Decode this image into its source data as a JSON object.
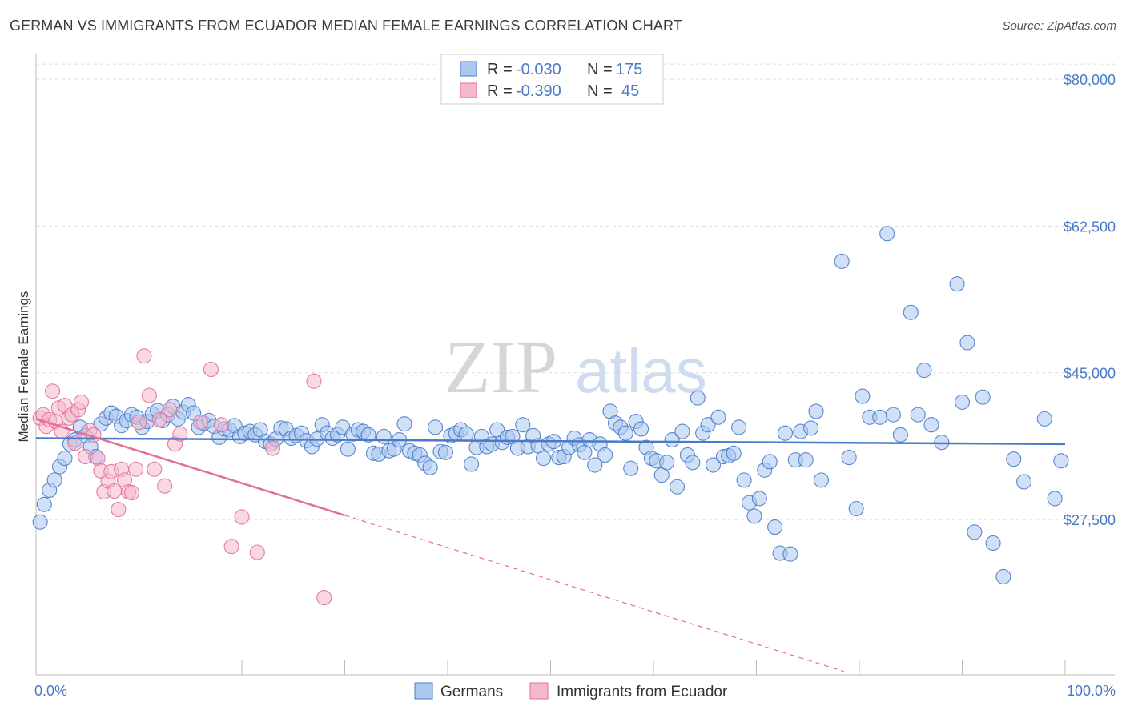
{
  "title": "GERMAN VS IMMIGRANTS FROM ECUADOR MEDIAN FEMALE EARNINGS CORRELATION CHART",
  "source": "Source: ZipAtlas.com",
  "watermark": {
    "zip": "ZIP",
    "atlas": "atlas"
  },
  "colors": {
    "blue": "#4a7ac7",
    "blue_fill": "#aac8f0",
    "pink": "#e07098",
    "pink_fill": "#f5b8cc",
    "grid": "#dddddd"
  },
  "legend": {
    "rows": [
      {
        "r_label": "R = ",
        "r_value": "-0.030",
        "n_label": "N = ",
        "n_value": "175"
      },
      {
        "r_label": "R = ",
        "r_value": "-0.390",
        "n_label": "N = ",
        "n_value": "45"
      }
    ]
  },
  "chart_data": {
    "type": "scatter",
    "title": "GERMAN VS IMMIGRANTS FROM ECUADOR MEDIAN FEMALE EARNINGS CORRELATION CHART",
    "xlabel": "",
    "ylabel": "Median Female Earnings",
    "x_range": [
      0,
      100
    ],
    "y_range": [
      9000,
      82000
    ],
    "x_tick_labels": [
      "0.0%",
      "100.0%"
    ],
    "y_ticks": [
      {
        "value": 80000,
        "label": "$80,000"
      },
      {
        "value": 62500,
        "label": "$62,500"
      },
      {
        "value": 45000,
        "label": "$45,000"
      },
      {
        "value": 27500,
        "label": "$27,500"
      }
    ],
    "grid": "horizontal dashed",
    "legend_placement": "top-center, bottom",
    "series": [
      {
        "name": "Germans",
        "color": "#4a7ac7",
        "trend": {
          "x": [
            0,
            100
          ],
          "y": [
            37200,
            36500
          ],
          "dashed_x": []
        },
        "points": [
          [
            0.4,
            27200
          ],
          [
            0.8,
            29300
          ],
          [
            1.3,
            31000
          ],
          [
            1.8,
            32200
          ],
          [
            2.3,
            33800
          ],
          [
            2.8,
            34800
          ],
          [
            3.3,
            36500
          ],
          [
            3.8,
            37000
          ],
          [
            4.3,
            38500
          ],
          [
            4.8,
            37500
          ],
          [
            5.3,
            36200
          ],
          [
            5.8,
            35000
          ],
          [
            6.3,
            38900
          ],
          [
            6.8,
            39600
          ],
          [
            7.3,
            40200
          ],
          [
            7.8,
            39800
          ],
          [
            8.3,
            38700
          ],
          [
            8.8,
            39300
          ],
          [
            9.3,
            40000
          ],
          [
            9.8,
            39700
          ],
          [
            10.3,
            38500
          ],
          [
            10.8,
            39200
          ],
          [
            11.3,
            40100
          ],
          [
            11.8,
            40500
          ],
          [
            12.3,
            39300
          ],
          [
            12.8,
            40000
          ],
          [
            13.3,
            41000
          ],
          [
            13.8,
            39500
          ],
          [
            14.3,
            40300
          ],
          [
            14.8,
            41200
          ],
          [
            15.3,
            40200
          ],
          [
            15.8,
            38500
          ],
          [
            16.3,
            39000
          ],
          [
            16.8,
            39300
          ],
          [
            17.3,
            38600
          ],
          [
            17.8,
            37300
          ],
          [
            18.3,
            38300
          ],
          [
            18.8,
            38200
          ],
          [
            19.3,
            38700
          ],
          [
            19.8,
            37400
          ],
          [
            20.3,
            37800
          ],
          [
            20.8,
            38000
          ],
          [
            21.3,
            37600
          ],
          [
            21.8,
            38200
          ],
          [
            22.3,
            36800
          ],
          [
            22.8,
            36500
          ],
          [
            23.3,
            37100
          ],
          [
            23.8,
            38400
          ],
          [
            24.3,
            38300
          ],
          [
            24.8,
            37200
          ],
          [
            25.3,
            37500
          ],
          [
            25.8,
            37800
          ],
          [
            26.3,
            36900
          ],
          [
            26.8,
            36200
          ],
          [
            27.3,
            37100
          ],
          [
            27.8,
            38800
          ],
          [
            28.3,
            37800
          ],
          [
            28.8,
            37200
          ],
          [
            29.3,
            37600
          ],
          [
            29.8,
            38500
          ],
          [
            30.3,
            35900
          ],
          [
            30.8,
            37700
          ],
          [
            31.3,
            38200
          ],
          [
            31.8,
            38000
          ],
          [
            32.3,
            37600
          ],
          [
            32.8,
            35400
          ],
          [
            33.3,
            35300
          ],
          [
            33.8,
            37400
          ],
          [
            34.3,
            35700
          ],
          [
            34.8,
            35900
          ],
          [
            35.3,
            37000
          ],
          [
            35.8,
            38900
          ],
          [
            36.3,
            35700
          ],
          [
            36.8,
            35400
          ],
          [
            37.3,
            35200
          ],
          [
            37.8,
            34200
          ],
          [
            38.3,
            33700
          ],
          [
            38.8,
            38500
          ],
          [
            39.3,
            35600
          ],
          [
            39.8,
            35500
          ],
          [
            40.3,
            37500
          ],
          [
            40.8,
            37800
          ],
          [
            41.3,
            38200
          ],
          [
            41.8,
            37700
          ],
          [
            42.3,
            34100
          ],
          [
            42.8,
            36100
          ],
          [
            43.3,
            37400
          ],
          [
            43.8,
            36200
          ],
          [
            44.3,
            36500
          ],
          [
            44.8,
            38200
          ],
          [
            45.3,
            36700
          ],
          [
            45.8,
            37300
          ],
          [
            46.3,
            37400
          ],
          [
            46.8,
            36000
          ],
          [
            47.3,
            38800
          ],
          [
            47.8,
            36200
          ],
          [
            48.3,
            37500
          ],
          [
            48.8,
            36300
          ],
          [
            49.3,
            34800
          ],
          [
            49.8,
            36500
          ],
          [
            50.3,
            36800
          ],
          [
            50.8,
            34900
          ],
          [
            51.3,
            35000
          ],
          [
            51.8,
            36100
          ],
          [
            52.3,
            37200
          ],
          [
            52.8,
            36400
          ],
          [
            53.3,
            35500
          ],
          [
            53.8,
            37000
          ],
          [
            54.3,
            34000
          ],
          [
            54.8,
            36500
          ],
          [
            55.3,
            35200
          ],
          [
            55.8,
            40400
          ],
          [
            56.3,
            39000
          ],
          [
            56.8,
            38500
          ],
          [
            57.3,
            37800
          ],
          [
            57.8,
            33600
          ],
          [
            58.3,
            39200
          ],
          [
            58.8,
            38300
          ],
          [
            59.3,
            36100
          ],
          [
            59.8,
            34800
          ],
          [
            60.3,
            34500
          ],
          [
            60.8,
            32800
          ],
          [
            61.3,
            34300
          ],
          [
            61.8,
            37000
          ],
          [
            62.3,
            31400
          ],
          [
            62.8,
            38000
          ],
          [
            63.3,
            35200
          ],
          [
            63.8,
            34300
          ],
          [
            64.3,
            42000
          ],
          [
            64.8,
            37800
          ],
          [
            65.3,
            38800
          ],
          [
            65.8,
            34000
          ],
          [
            66.3,
            39700
          ],
          [
            66.8,
            35000
          ],
          [
            67.3,
            35100
          ],
          [
            67.8,
            35400
          ],
          [
            68.3,
            38500
          ],
          [
            68.8,
            32200
          ],
          [
            69.3,
            29500
          ],
          [
            69.8,
            27900
          ],
          [
            70.3,
            30000
          ],
          [
            70.8,
            33400
          ],
          [
            71.3,
            34400
          ],
          [
            71.8,
            26600
          ],
          [
            72.3,
            23500
          ],
          [
            72.8,
            37800
          ],
          [
            73.3,
            23400
          ],
          [
            73.8,
            34600
          ],
          [
            74.3,
            38000
          ],
          [
            74.8,
            34600
          ],
          [
            75.3,
            38400
          ],
          [
            75.8,
            40400
          ],
          [
            76.3,
            32200
          ],
          [
            78.3,
            58300
          ],
          [
            79.0,
            34900
          ],
          [
            79.7,
            28800
          ],
          [
            80.3,
            42200
          ],
          [
            81.0,
            39700
          ],
          [
            82.0,
            39700
          ],
          [
            82.7,
            61600
          ],
          [
            83.3,
            40000
          ],
          [
            84.0,
            37600
          ],
          [
            85.0,
            52200
          ],
          [
            85.7,
            40000
          ],
          [
            86.3,
            45300
          ],
          [
            87.0,
            38800
          ],
          [
            88.0,
            36700
          ],
          [
            89.5,
            55600
          ],
          [
            90.0,
            41500
          ],
          [
            90.5,
            48600
          ],
          [
            91.2,
            26000
          ],
          [
            92.0,
            42100
          ],
          [
            93.0,
            24700
          ],
          [
            94.0,
            20700
          ],
          [
            95.0,
            34700
          ],
          [
            96.0,
            32000
          ],
          [
            98.0,
            39500
          ],
          [
            99.0,
            30000
          ],
          [
            99.6,
            34500
          ]
        ]
      },
      {
        "name": "Immigrants from Ecuador",
        "color": "#e07098",
        "trend": {
          "x": [
            0,
            30
          ],
          "y": [
            39500,
            28000
          ],
          "dashed_x": [
            30,
            78.5
          ]
        },
        "points": [
          [
            0.4,
            39600
          ],
          [
            0.7,
            40000
          ],
          [
            1.0,
            38600
          ],
          [
            1.3,
            39400
          ],
          [
            1.6,
            42800
          ],
          [
            1.9,
            39200
          ],
          [
            2.2,
            40800
          ],
          [
            2.5,
            38000
          ],
          [
            2.8,
            41100
          ],
          [
            3.2,
            39600
          ],
          [
            3.5,
            40000
          ],
          [
            3.8,
            36600
          ],
          [
            4.1,
            40600
          ],
          [
            4.4,
            41500
          ],
          [
            4.8,
            35000
          ],
          [
            5.2,
            38100
          ],
          [
            5.6,
            37600
          ],
          [
            6.0,
            34800
          ],
          [
            6.3,
            33300
          ],
          [
            6.6,
            30800
          ],
          [
            7.0,
            32100
          ],
          [
            7.3,
            33200
          ],
          [
            7.6,
            30900
          ],
          [
            8.0,
            28700
          ],
          [
            8.3,
            33500
          ],
          [
            8.6,
            32200
          ],
          [
            9.0,
            30800
          ],
          [
            9.3,
            30700
          ],
          [
            9.7,
            33500
          ],
          [
            10.0,
            39100
          ],
          [
            10.5,
            47000
          ],
          [
            11.0,
            42300
          ],
          [
            11.5,
            33500
          ],
          [
            12.0,
            39400
          ],
          [
            12.5,
            31500
          ],
          [
            13.0,
            40600
          ],
          [
            13.5,
            36500
          ],
          [
            14.0,
            37700
          ],
          [
            16.0,
            39100
          ],
          [
            17.0,
            45400
          ],
          [
            18.0,
            38800
          ],
          [
            19.0,
            24300
          ],
          [
            20.0,
            27800
          ],
          [
            21.5,
            23600
          ],
          [
            23.0,
            36000
          ],
          [
            27.0,
            44000
          ],
          [
            28.0,
            18200
          ]
        ]
      }
    ]
  },
  "bottom_legend": [
    {
      "label": "Germans"
    },
    {
      "label": "Immigrants from Ecuador"
    }
  ]
}
